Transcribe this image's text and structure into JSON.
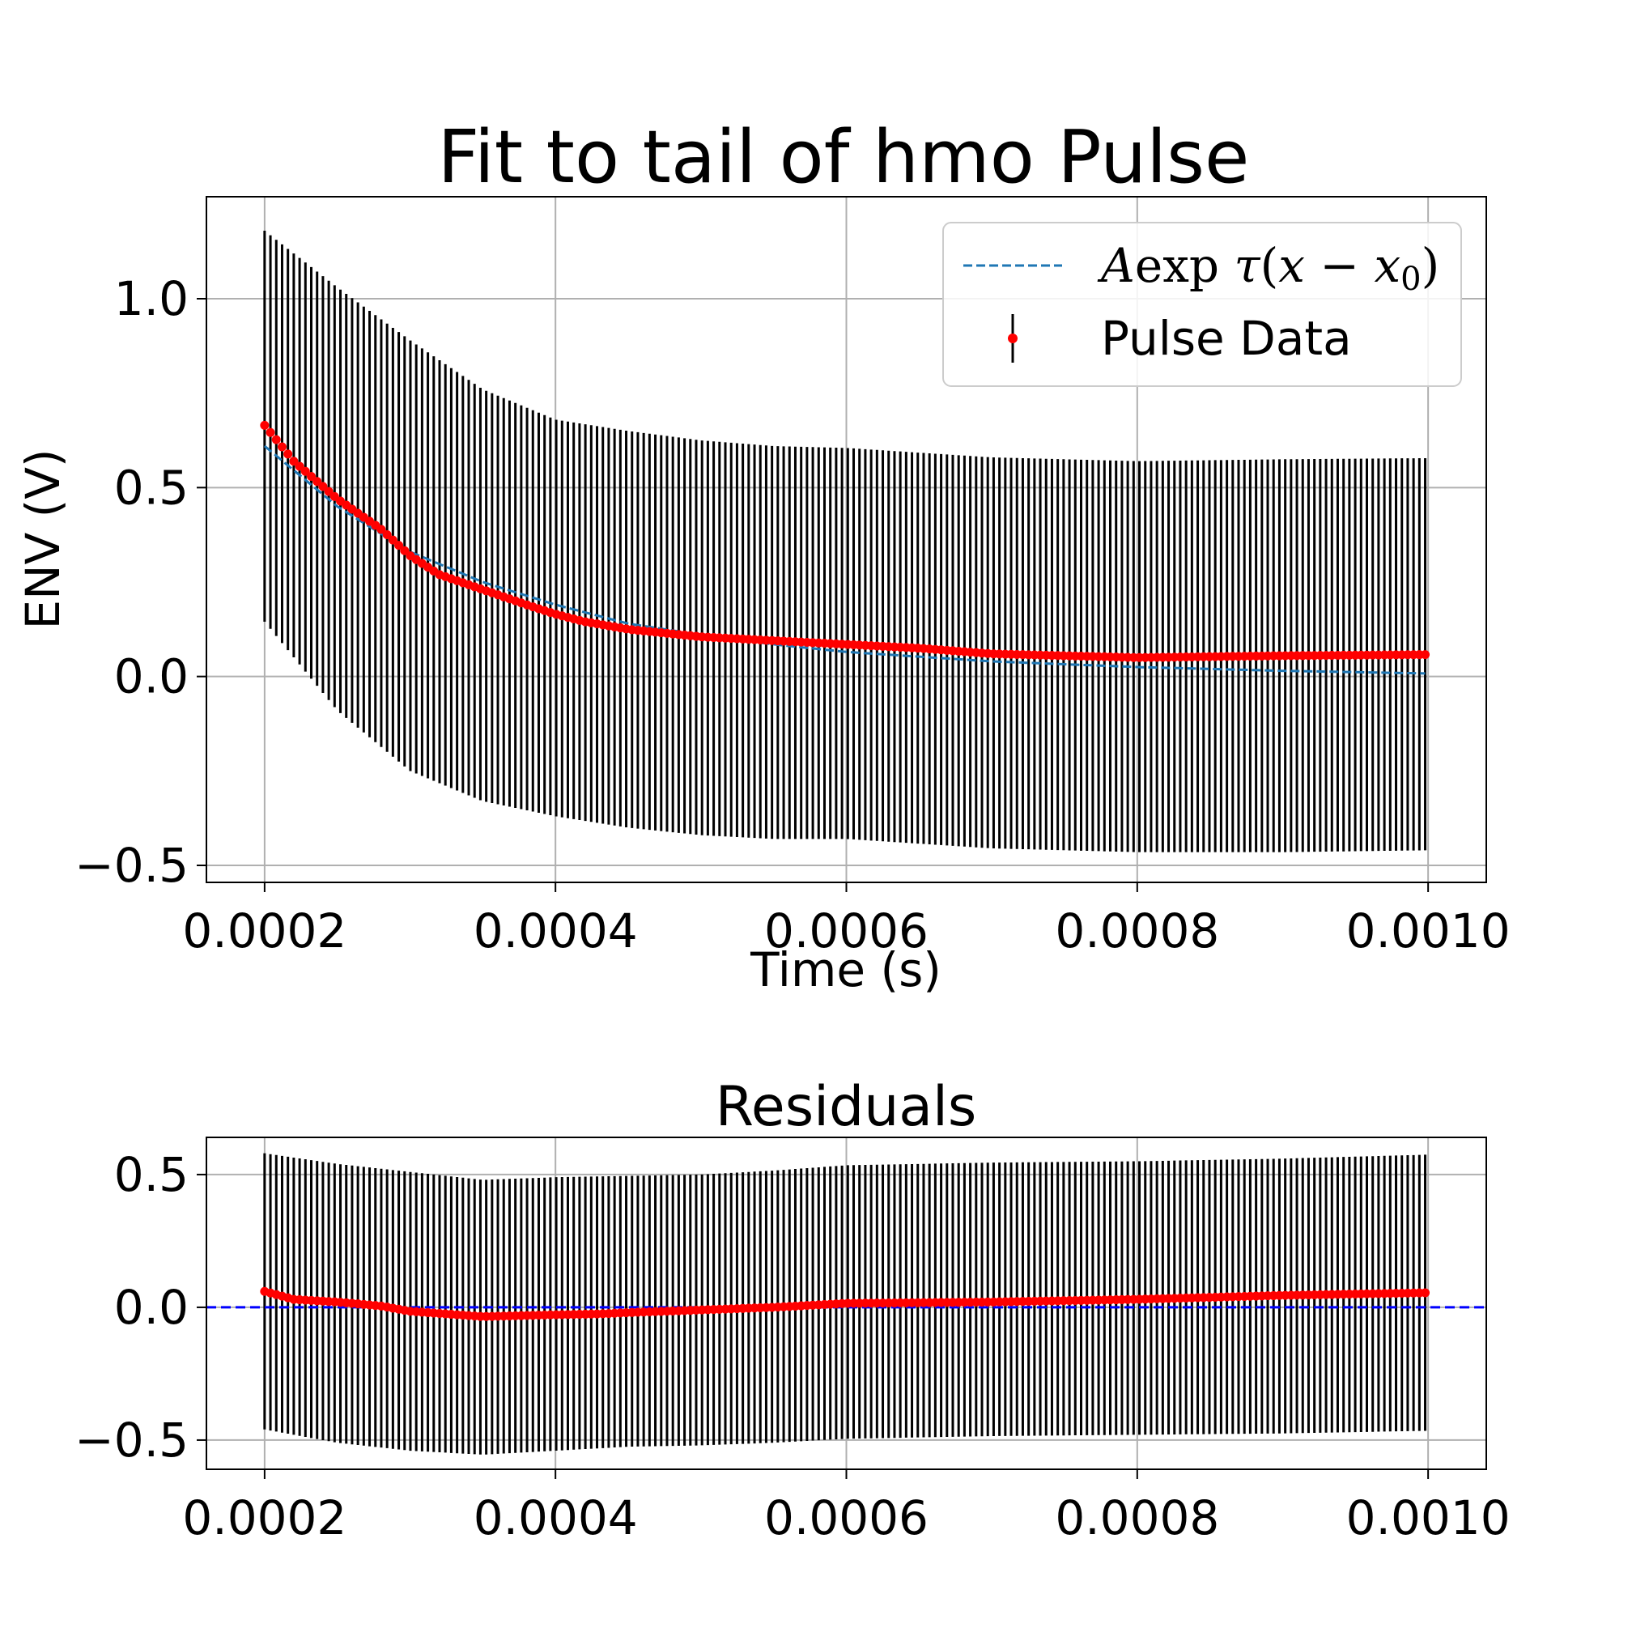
{
  "chart_data": [
    {
      "type": "scatter",
      "title": "Fit to tail of hmo Pulse",
      "xlabel": "Time (s)",
      "ylabel": "ENV (V)",
      "xlim": [
        0.00016,
        0.00104
      ],
      "ylim": [
        -0.545,
        1.27
      ],
      "xticks": [
        0.0002,
        0.0004,
        0.0006,
        0.0008,
        0.001
      ],
      "xtick_labels": [
        "0.0002",
        "0.0004",
        "0.0006",
        "0.0008",
        "0.0010"
      ],
      "yticks": [
        -0.5,
        0.0,
        0.5,
        1.0
      ],
      "ytick_labels": [
        "−0.5",
        "0.0",
        "0.5",
        "1.0"
      ],
      "grid": true,
      "legend_position": "top-right",
      "x_range": [
        0.0002,
        0.000998
      ],
      "n_points": 200,
      "series": [
        {
          "name": "Aexp τ(x − x0)",
          "kind": "fit-line",
          "style": "dashed",
          "color": "#1f77b4",
          "x": [
            0.0002,
            0.00025,
            0.0003,
            0.00035,
            0.0004,
            0.00045,
            0.0005,
            0.00055,
            0.0006,
            0.0007,
            0.0008,
            0.0009,
            0.001
          ],
          "y": [
            0.61,
            0.45,
            0.33,
            0.25,
            0.19,
            0.14,
            0.11,
            0.085,
            0.065,
            0.04,
            0.025,
            0.015,
            0.008
          ]
        },
        {
          "name": "Pulse Data",
          "kind": "errorbar-points",
          "color": "#ff0000",
          "errorbar_color": "#000000",
          "x": [
            0.0002,
            0.00022,
            0.00025,
            0.00028,
            0.0003,
            0.00032,
            0.00035,
            0.00038,
            0.0004,
            0.00042,
            0.00045,
            0.0005,
            0.00055,
            0.0006,
            0.00065,
            0.0007,
            0.0008,
            0.0009,
            0.001
          ],
          "y": [
            0.665,
            0.57,
            0.47,
            0.39,
            0.32,
            0.27,
            0.23,
            0.19,
            0.165,
            0.145,
            0.125,
            0.105,
            0.095,
            0.085,
            0.075,
            0.06,
            0.05,
            0.055,
            0.058
          ],
          "yerr_upper_x": [
            0.0002,
            0.00025,
            0.0003,
            0.00035,
            0.0004,
            0.00045,
            0.0005,
            0.00055,
            0.0006,
            0.0007,
            0.0008,
            0.0009,
            0.001
          ],
          "yerr_upper": [
            1.18,
            1.03,
            0.89,
            0.76,
            0.68,
            0.65,
            0.625,
            0.61,
            0.605,
            0.58,
            0.57,
            0.575,
            0.578
          ],
          "yerr_lower_x": [
            0.0002,
            0.00025,
            0.0003,
            0.00035,
            0.0004,
            0.00045,
            0.0005,
            0.00055,
            0.0006,
            0.0007,
            0.0008,
            0.0009,
            0.001
          ],
          "yerr_lower": [
            0.145,
            -0.09,
            -0.25,
            -0.33,
            -0.37,
            -0.4,
            -0.42,
            -0.43,
            -0.43,
            -0.455,
            -0.465,
            -0.465,
            -0.46
          ]
        }
      ]
    },
    {
      "type": "scatter",
      "title": "Residuals",
      "xlabel": "",
      "ylabel": "",
      "xlim": [
        0.00016,
        0.00104
      ],
      "ylim": [
        -0.61,
        0.64
      ],
      "xticks": [
        0.0002,
        0.0004,
        0.0006,
        0.0008,
        0.001
      ],
      "xtick_labels": [
        "0.0002",
        "0.0004",
        "0.0006",
        "0.0008",
        "0.0010"
      ],
      "yticks": [
        -0.5,
        0.0,
        0.5
      ],
      "ytick_labels": [
        "−0.5",
        "0.0",
        "0.5"
      ],
      "grid": true,
      "x_range": [
        0.0002,
        0.000998
      ],
      "n_points": 200,
      "zero_line": {
        "y": 0,
        "style": "dashed",
        "color": "#0000ff"
      },
      "series": [
        {
          "name": "",
          "kind": "errorbar-points",
          "color": "#ff0000",
          "errorbar_color": "#000000",
          "x": [
            0.0002,
            0.00022,
            0.00025,
            0.00028,
            0.0003,
            0.00035,
            0.0004,
            0.00043,
            0.00045,
            0.0005,
            0.00055,
            0.0006,
            0.0007,
            0.0008,
            0.0009,
            0.001
          ],
          "y": [
            0.06,
            0.03,
            0.02,
            0.005,
            -0.015,
            -0.035,
            -0.028,
            -0.025,
            -0.02,
            -0.01,
            0.0,
            0.015,
            0.02,
            0.03,
            0.045,
            0.055
          ],
          "yerr_upper_x": [
            0.0002,
            0.00025,
            0.0003,
            0.00035,
            0.0004,
            0.00045,
            0.0005,
            0.00055,
            0.0006,
            0.0007,
            0.0008,
            0.0009,
            0.001
          ],
          "yerr_upper": [
            0.58,
            0.54,
            0.51,
            0.48,
            0.49,
            0.495,
            0.5,
            0.515,
            0.535,
            0.545,
            0.55,
            0.56,
            0.575
          ],
          "yerr_lower_x": [
            0.0002,
            0.00025,
            0.0003,
            0.00035,
            0.0004,
            0.00045,
            0.0005,
            0.00055,
            0.0006,
            0.0007,
            0.0008,
            0.0009,
            0.001
          ],
          "yerr_lower": [
            -0.46,
            -0.51,
            -0.54,
            -0.555,
            -0.54,
            -0.525,
            -0.52,
            -0.51,
            -0.495,
            -0.485,
            -0.48,
            -0.475,
            -0.465
          ]
        }
      ]
    }
  ]
}
